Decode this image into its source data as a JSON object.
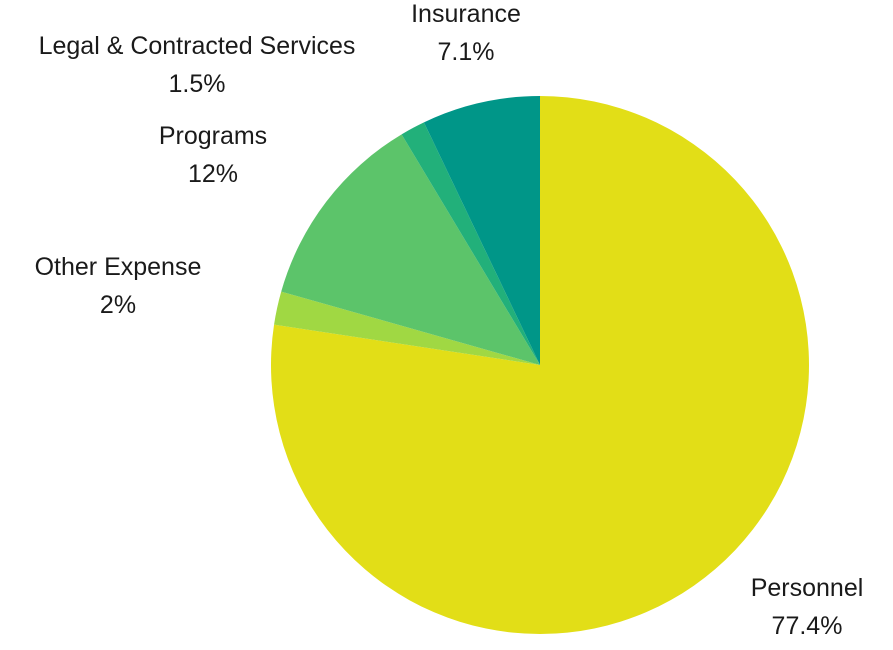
{
  "chart_data": {
    "type": "pie",
    "title": "",
    "slices": [
      {
        "label": "Personnel",
        "percent_label": "77.4%",
        "value": 77.4,
        "color": "#e2de17"
      },
      {
        "label": "Other Expense",
        "percent_label": "2%",
        "value": 2.0,
        "color": "#a0d843"
      },
      {
        "label": "Programs",
        "percent_label": "12%",
        "value": 12.0,
        "color": "#5cc46a"
      },
      {
        "label": "Legal & Contracted Services",
        "percent_label": "1.5%",
        "value": 1.5,
        "color": "#22b07a"
      },
      {
        "label": "Insurance",
        "percent_label": "7.1%",
        "value": 7.1,
        "color": "#009688"
      }
    ],
    "start_angle": "12 o'clock",
    "direction": "clockwise",
    "legend": "none"
  }
}
